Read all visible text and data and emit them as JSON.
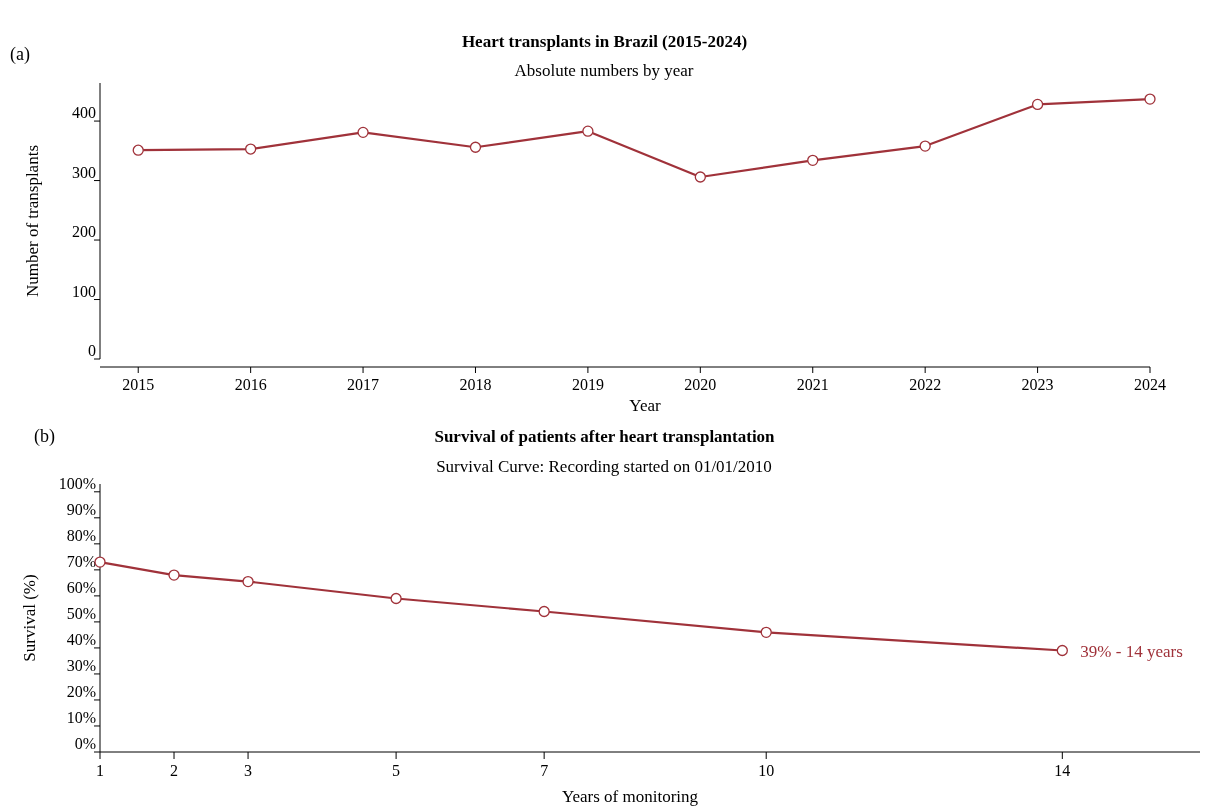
{
  "chart_data": [
    {
      "type": "line",
      "title": "Heart transplants in Brazil (2015-2024)",
      "subtitle": "Absolute numbers by year",
      "xlabel": "Year",
      "ylabel": "Number of transplants",
      "annotations": [
        "(a)"
      ],
      "x": [
        2015,
        2016,
        2017,
        2018,
        2019,
        2020,
        2021,
        2022,
        2023,
        2024
      ],
      "series": [
        {
          "color": "#a0323a",
          "values": [
            351,
            353,
            381,
            356,
            383,
            306,
            334,
            358,
            428,
            437
          ]
        }
      ],
      "xlim": [
        2014.66,
        2024
      ],
      "xticks": [
        2015,
        2016,
        2017,
        2018,
        2019,
        2020,
        2021,
        2022,
        2023,
        2024
      ],
      "ylim": [
        0,
        464
      ],
      "yticks": [
        0,
        100,
        200,
        300,
        400
      ],
      "marker": "circle",
      "line_style": "solid"
    },
    {
      "type": "line",
      "title": "Survival of patients after heart transplantation",
      "subtitle": "Survival Curve: Recording started on 01/01/2010",
      "xlabel": "Years of monitoring",
      "ylabel": "Survival (%)",
      "annotations": [
        "(b)",
        {
          "text": "39% - 14 years",
          "x": 14,
          "y": 39
        }
      ],
      "x": [
        1,
        2,
        3,
        5,
        7,
        10,
        14
      ],
      "series": [
        {
          "color": "#a0323a",
          "values": [
            73,
            68,
            65.5,
            59,
            54,
            46,
            39
          ]
        }
      ],
      "xlim": [
        1,
        15.86
      ],
      "xticks": [
        1,
        2,
        3,
        5,
        7,
        10,
        14
      ],
      "ylim": [
        0,
        103
      ],
      "yticks": [
        {
          "value": 0,
          "label": "0%"
        },
        {
          "value": 10,
          "label": "10%"
        },
        {
          "value": 20,
          "label": "20%"
        },
        {
          "value": 30,
          "label": "30%"
        },
        {
          "value": 40,
          "label": "40%"
        },
        {
          "value": 50,
          "label": "50%"
        },
        {
          "value": 60,
          "label": "60%"
        },
        {
          "value": 70,
          "label": "70%"
        },
        {
          "value": 80,
          "label": "80%"
        },
        {
          "value": 90,
          "label": "90%"
        },
        {
          "value": 100,
          "label": "100%"
        }
      ],
      "marker": "circle",
      "line_style": "solid"
    }
  ]
}
